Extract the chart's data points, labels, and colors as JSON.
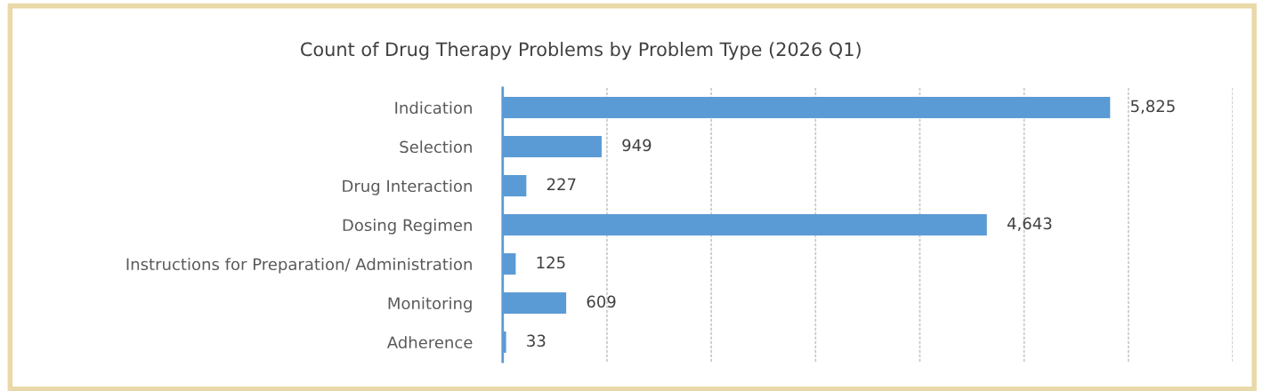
{
  "chart_data": {
    "type": "bar",
    "orientation": "horizontal",
    "title": "Count of Drug Therapy Problems by Problem Type (2026 Q1)",
    "categories": [
      "Indication",
      "Selection",
      "Drug Interaction",
      "Dosing Regimen",
      "Instructions for Preparation/ Administration",
      "Monitoring",
      "Adherence"
    ],
    "values": [
      5825,
      949,
      227,
      4643,
      125,
      609,
      33
    ],
    "value_labels": [
      "5,825",
      "949",
      "227",
      "4,643",
      "125",
      "609",
      "33"
    ],
    "color": "#5b9bd5",
    "xlim": [
      0,
      7000
    ],
    "xticks": [
      0,
      1000,
      2000,
      3000,
      4000,
      5000,
      6000,
      7000
    ],
    "tick_labels": "y",
    "grid": "x"
  }
}
